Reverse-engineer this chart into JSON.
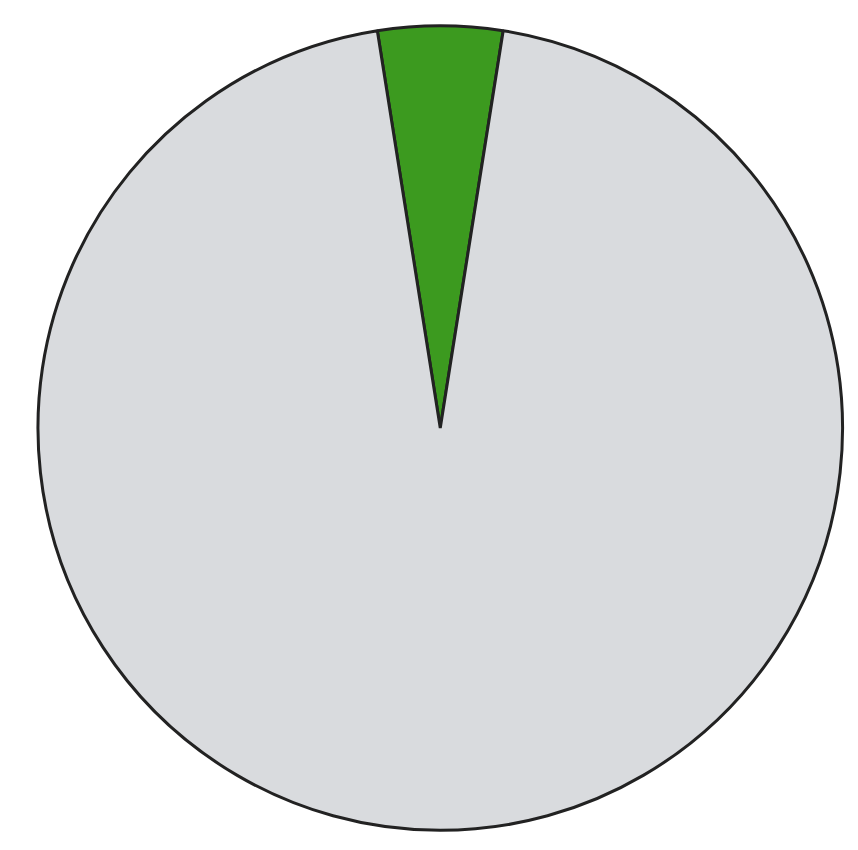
{
  "chart_data": {
    "type": "pie",
    "categories": [
      null,
      null
    ],
    "values": [
      5,
      95
    ],
    "colors": [
      "#3c9a1f",
      "#d9dbde"
    ]
  }
}
